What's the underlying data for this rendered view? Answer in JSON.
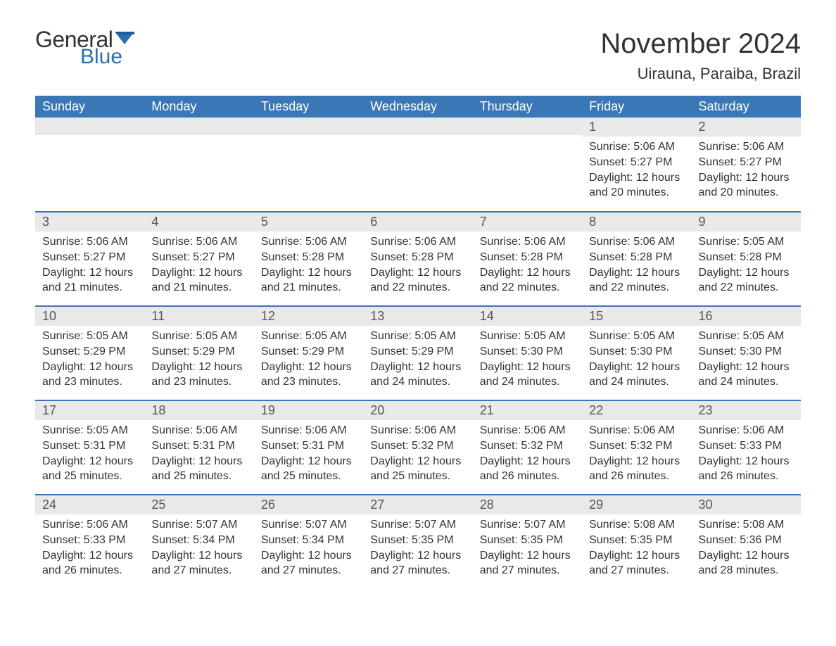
{
  "brand": {
    "word1": "General",
    "word2": "Blue",
    "flag_color": "#2d6fb3",
    "word1_color": "#333333",
    "word2_color": "#2d6fb3"
  },
  "title": "November 2024",
  "location": "Uirauna, Paraiba, Brazil",
  "colors": {
    "header_bg": "#3a77b7",
    "header_text": "#ffffff",
    "daynum_bg": "#e9e9e9",
    "daynum_text": "#555555",
    "cell_border": "#3a77b7",
    "body_text": "#333333",
    "page_bg": "#ffffff"
  },
  "day_headers": [
    "Sunday",
    "Monday",
    "Tuesday",
    "Wednesday",
    "Thursday",
    "Friday",
    "Saturday"
  ],
  "weeks": [
    [
      {
        "day": "",
        "sunrise": "",
        "sunset": "",
        "daylight1": "",
        "daylight2": ""
      },
      {
        "day": "",
        "sunrise": "",
        "sunset": "",
        "daylight1": "",
        "daylight2": ""
      },
      {
        "day": "",
        "sunrise": "",
        "sunset": "",
        "daylight1": "",
        "daylight2": ""
      },
      {
        "day": "",
        "sunrise": "",
        "sunset": "",
        "daylight1": "",
        "daylight2": ""
      },
      {
        "day": "",
        "sunrise": "",
        "sunset": "",
        "daylight1": "",
        "daylight2": ""
      },
      {
        "day": "1",
        "sunrise": "Sunrise: 5:06 AM",
        "sunset": "Sunset: 5:27 PM",
        "daylight1": "Daylight: 12 hours",
        "daylight2": "and 20 minutes."
      },
      {
        "day": "2",
        "sunrise": "Sunrise: 5:06 AM",
        "sunset": "Sunset: 5:27 PM",
        "daylight1": "Daylight: 12 hours",
        "daylight2": "and 20 minutes."
      }
    ],
    [
      {
        "day": "3",
        "sunrise": "Sunrise: 5:06 AM",
        "sunset": "Sunset: 5:27 PM",
        "daylight1": "Daylight: 12 hours",
        "daylight2": "and 21 minutes."
      },
      {
        "day": "4",
        "sunrise": "Sunrise: 5:06 AM",
        "sunset": "Sunset: 5:27 PM",
        "daylight1": "Daylight: 12 hours",
        "daylight2": "and 21 minutes."
      },
      {
        "day": "5",
        "sunrise": "Sunrise: 5:06 AM",
        "sunset": "Sunset: 5:28 PM",
        "daylight1": "Daylight: 12 hours",
        "daylight2": "and 21 minutes."
      },
      {
        "day": "6",
        "sunrise": "Sunrise: 5:06 AM",
        "sunset": "Sunset: 5:28 PM",
        "daylight1": "Daylight: 12 hours",
        "daylight2": "and 22 minutes."
      },
      {
        "day": "7",
        "sunrise": "Sunrise: 5:06 AM",
        "sunset": "Sunset: 5:28 PM",
        "daylight1": "Daylight: 12 hours",
        "daylight2": "and 22 minutes."
      },
      {
        "day": "8",
        "sunrise": "Sunrise: 5:06 AM",
        "sunset": "Sunset: 5:28 PM",
        "daylight1": "Daylight: 12 hours",
        "daylight2": "and 22 minutes."
      },
      {
        "day": "9",
        "sunrise": "Sunrise: 5:05 AM",
        "sunset": "Sunset: 5:28 PM",
        "daylight1": "Daylight: 12 hours",
        "daylight2": "and 22 minutes."
      }
    ],
    [
      {
        "day": "10",
        "sunrise": "Sunrise: 5:05 AM",
        "sunset": "Sunset: 5:29 PM",
        "daylight1": "Daylight: 12 hours",
        "daylight2": "and 23 minutes."
      },
      {
        "day": "11",
        "sunrise": "Sunrise: 5:05 AM",
        "sunset": "Sunset: 5:29 PM",
        "daylight1": "Daylight: 12 hours",
        "daylight2": "and 23 minutes."
      },
      {
        "day": "12",
        "sunrise": "Sunrise: 5:05 AM",
        "sunset": "Sunset: 5:29 PM",
        "daylight1": "Daylight: 12 hours",
        "daylight2": "and 23 minutes."
      },
      {
        "day": "13",
        "sunrise": "Sunrise: 5:05 AM",
        "sunset": "Sunset: 5:29 PM",
        "daylight1": "Daylight: 12 hours",
        "daylight2": "and 24 minutes."
      },
      {
        "day": "14",
        "sunrise": "Sunrise: 5:05 AM",
        "sunset": "Sunset: 5:30 PM",
        "daylight1": "Daylight: 12 hours",
        "daylight2": "and 24 minutes."
      },
      {
        "day": "15",
        "sunrise": "Sunrise: 5:05 AM",
        "sunset": "Sunset: 5:30 PM",
        "daylight1": "Daylight: 12 hours",
        "daylight2": "and 24 minutes."
      },
      {
        "day": "16",
        "sunrise": "Sunrise: 5:05 AM",
        "sunset": "Sunset: 5:30 PM",
        "daylight1": "Daylight: 12 hours",
        "daylight2": "and 24 minutes."
      }
    ],
    [
      {
        "day": "17",
        "sunrise": "Sunrise: 5:05 AM",
        "sunset": "Sunset: 5:31 PM",
        "daylight1": "Daylight: 12 hours",
        "daylight2": "and 25 minutes."
      },
      {
        "day": "18",
        "sunrise": "Sunrise: 5:06 AM",
        "sunset": "Sunset: 5:31 PM",
        "daylight1": "Daylight: 12 hours",
        "daylight2": "and 25 minutes."
      },
      {
        "day": "19",
        "sunrise": "Sunrise: 5:06 AM",
        "sunset": "Sunset: 5:31 PM",
        "daylight1": "Daylight: 12 hours",
        "daylight2": "and 25 minutes."
      },
      {
        "day": "20",
        "sunrise": "Sunrise: 5:06 AM",
        "sunset": "Sunset: 5:32 PM",
        "daylight1": "Daylight: 12 hours",
        "daylight2": "and 25 minutes."
      },
      {
        "day": "21",
        "sunrise": "Sunrise: 5:06 AM",
        "sunset": "Sunset: 5:32 PM",
        "daylight1": "Daylight: 12 hours",
        "daylight2": "and 26 minutes."
      },
      {
        "day": "22",
        "sunrise": "Sunrise: 5:06 AM",
        "sunset": "Sunset: 5:32 PM",
        "daylight1": "Daylight: 12 hours",
        "daylight2": "and 26 minutes."
      },
      {
        "day": "23",
        "sunrise": "Sunrise: 5:06 AM",
        "sunset": "Sunset: 5:33 PM",
        "daylight1": "Daylight: 12 hours",
        "daylight2": "and 26 minutes."
      }
    ],
    [
      {
        "day": "24",
        "sunrise": "Sunrise: 5:06 AM",
        "sunset": "Sunset: 5:33 PM",
        "daylight1": "Daylight: 12 hours",
        "daylight2": "and 26 minutes."
      },
      {
        "day": "25",
        "sunrise": "Sunrise: 5:07 AM",
        "sunset": "Sunset: 5:34 PM",
        "daylight1": "Daylight: 12 hours",
        "daylight2": "and 27 minutes."
      },
      {
        "day": "26",
        "sunrise": "Sunrise: 5:07 AM",
        "sunset": "Sunset: 5:34 PM",
        "daylight1": "Daylight: 12 hours",
        "daylight2": "and 27 minutes."
      },
      {
        "day": "27",
        "sunrise": "Sunrise: 5:07 AM",
        "sunset": "Sunset: 5:35 PM",
        "daylight1": "Daylight: 12 hours",
        "daylight2": "and 27 minutes."
      },
      {
        "day": "28",
        "sunrise": "Sunrise: 5:07 AM",
        "sunset": "Sunset: 5:35 PM",
        "daylight1": "Daylight: 12 hours",
        "daylight2": "and 27 minutes."
      },
      {
        "day": "29",
        "sunrise": "Sunrise: 5:08 AM",
        "sunset": "Sunset: 5:35 PM",
        "daylight1": "Daylight: 12 hours",
        "daylight2": "and 27 minutes."
      },
      {
        "day": "30",
        "sunrise": "Sunrise: 5:08 AM",
        "sunset": "Sunset: 5:36 PM",
        "daylight1": "Daylight: 12 hours",
        "daylight2": "and 28 minutes."
      }
    ]
  ]
}
